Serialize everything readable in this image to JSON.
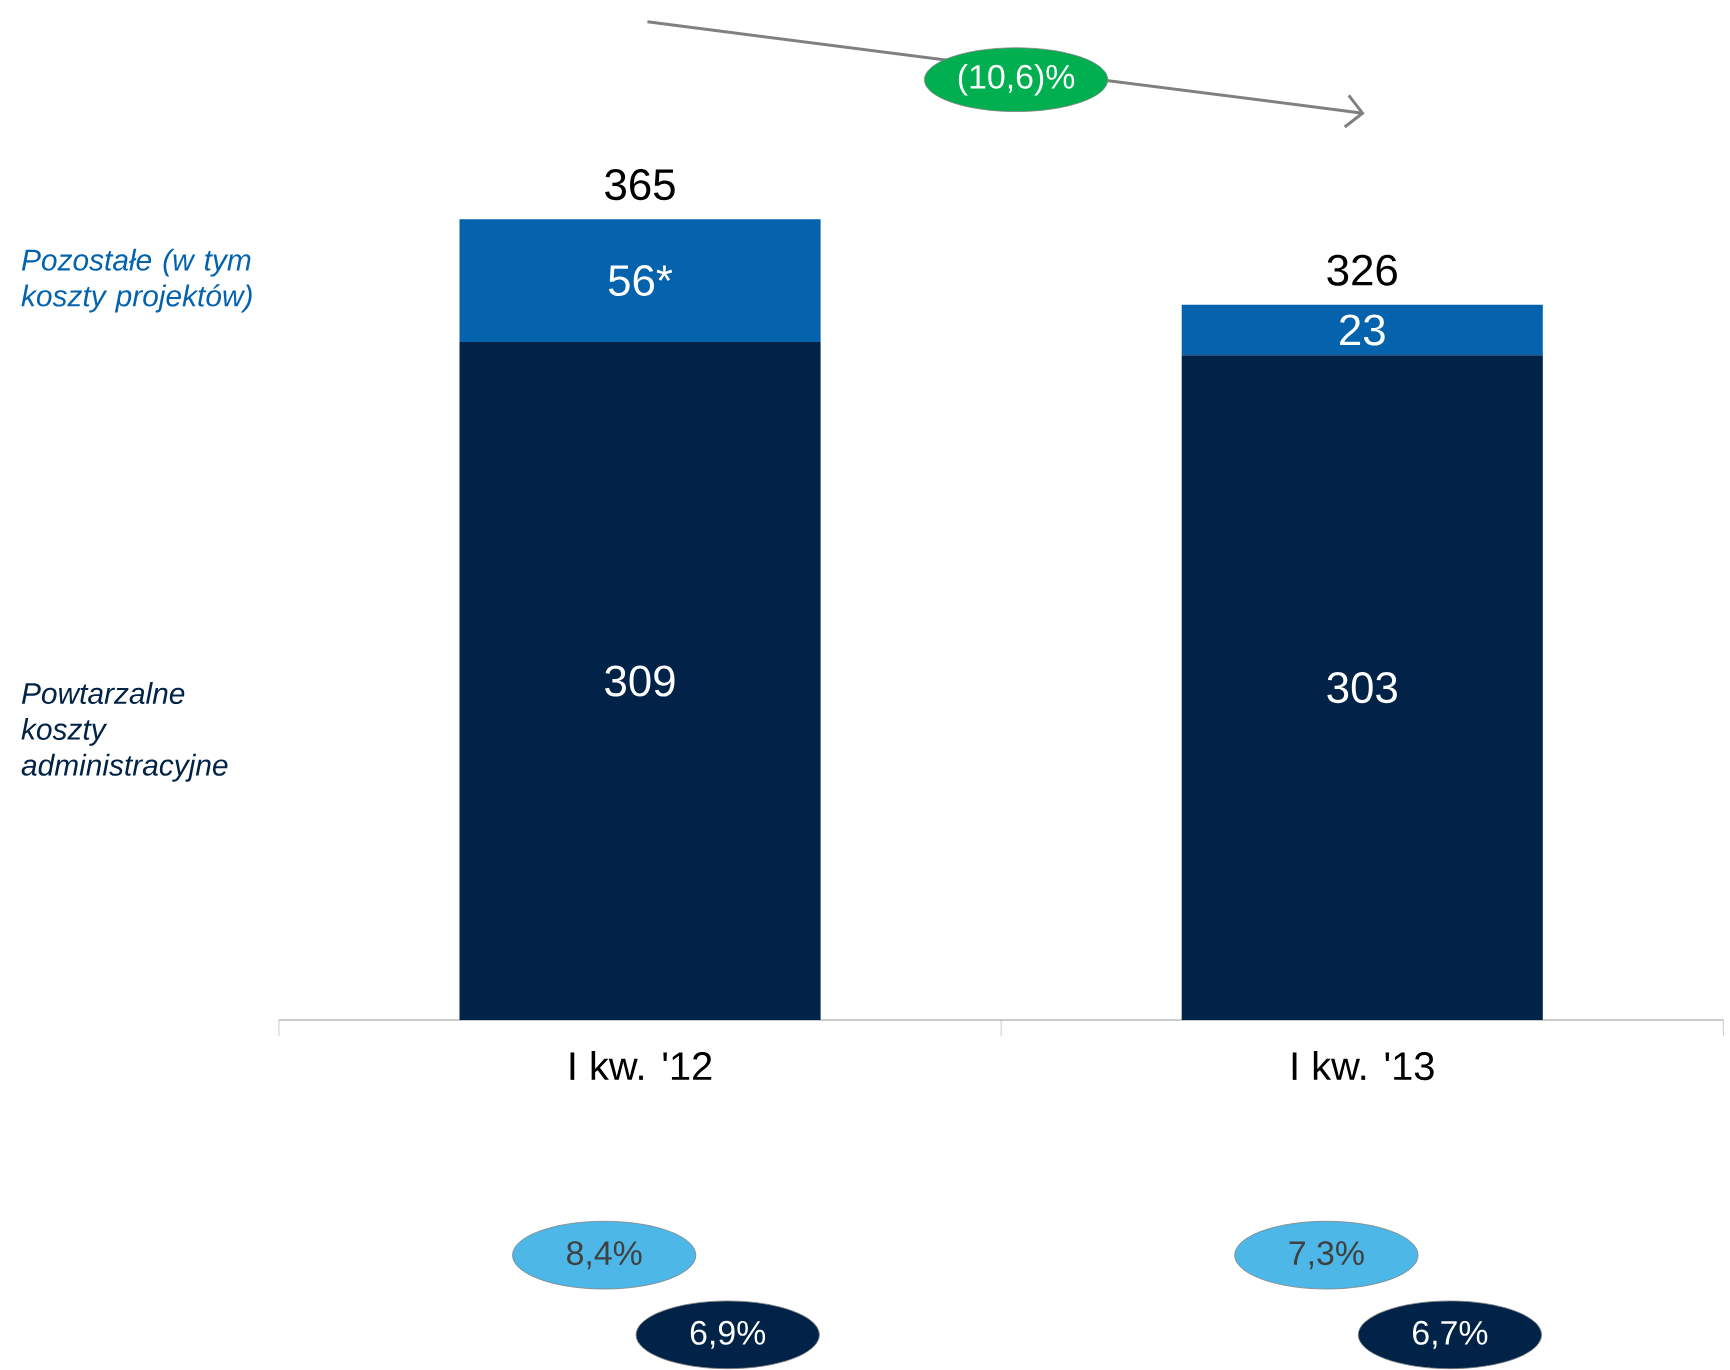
{
  "chart_data": {
    "type": "bar",
    "stacked": true,
    "legend": "left",
    "categories": [
      "I kw. '12",
      "I kw. '13"
    ],
    "series": [
      {
        "name": "Powtarzalne koszty administracyjne",
        "color": "#002347",
        "values": [
          309,
          303
        ],
        "value_labels": [
          "309",
          "303"
        ]
      },
      {
        "name": "Pozostałe (w tym koszty projektów)",
        "color": "#0563ae",
        "values": [
          56,
          23
        ],
        "value_labels": [
          "56*",
          "23"
        ]
      }
    ],
    "totals": [
      "365",
      "326"
    ],
    "annotations": [
      "(10,6)%",
      "8,4%",
      "6,9%",
      "7,3%",
      "6,7%"
    ]
  }
}
